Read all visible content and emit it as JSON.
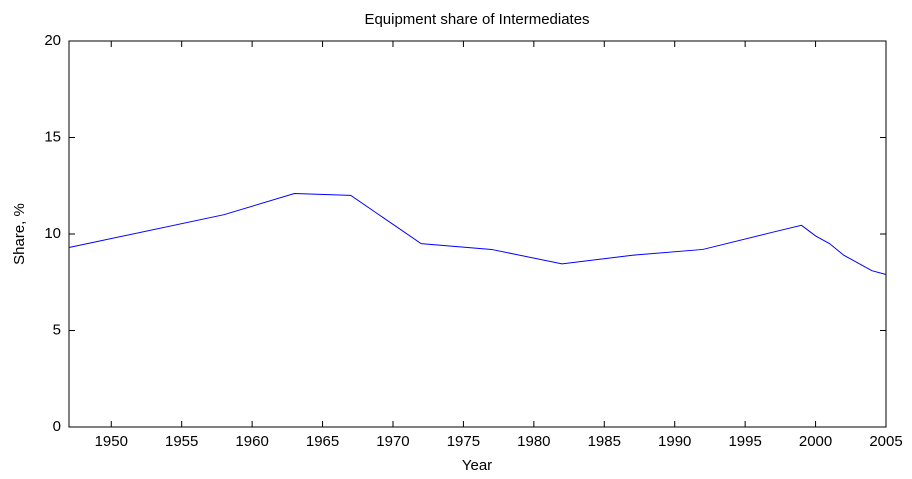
{
  "chart_data": {
    "type": "line",
    "title": "Equipment share of Intermediates",
    "xlabel": "Year",
    "ylabel": "Share, %",
    "x": [
      1947,
      1958,
      1963,
      1967,
      1972,
      1977,
      1982,
      1987,
      1992,
      1997,
      1999,
      2000,
      2001,
      2002,
      2004,
      2005
    ],
    "series": [
      {
        "name": "Equipment share",
        "color": "#0000ff",
        "values": [
          9.3,
          11.0,
          12.1,
          12.0,
          9.5,
          9.2,
          8.45,
          8.9,
          9.2,
          10.1,
          10.45,
          9.9,
          9.5,
          8.9,
          8.1,
          7.9
        ]
      }
    ],
    "xlim": [
      1947,
      2005
    ],
    "xticks": [
      1950,
      1955,
      1960,
      1965,
      1970,
      1975,
      1980,
      1985,
      1990,
      1995,
      2000,
      2005
    ],
    "ylim": [
      0,
      20
    ],
    "yticks": [
      0,
      5,
      10,
      15,
      20
    ],
    "grid": false
  }
}
